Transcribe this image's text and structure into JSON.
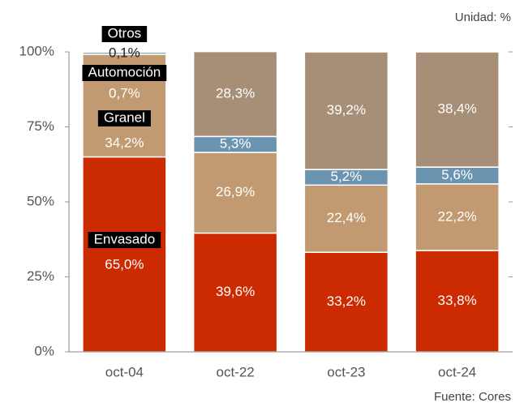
{
  "chart_data": {
    "type": "stacked_bar",
    "unit_label": "Unidad: %",
    "source": "Fuente: Cores",
    "categories": [
      "oct-04",
      "oct-22",
      "oct-23",
      "oct-24"
    ],
    "series": [
      {
        "name": "Envasado",
        "color": "#cc2a00",
        "values": [
          65.0,
          39.6,
          33.2,
          33.8
        ],
        "value_labels": [
          "65,0%",
          "39,6%",
          "33,2%",
          "33,8%"
        ]
      },
      {
        "name": "Granel",
        "color": "#c19a72",
        "values": [
          34.2,
          26.9,
          22.4,
          22.2
        ],
        "value_labels": [
          "34,2%",
          "26,9%",
          "22,4%",
          "22,2%"
        ]
      },
      {
        "name": "Automoción",
        "color": "#6a94b0",
        "values": [
          0.7,
          5.3,
          5.2,
          5.6
        ],
        "value_labels": [
          "0,7%",
          "5,3%",
          "5,2%",
          "5,6%"
        ]
      },
      {
        "name": "Otros",
        "color": "#a68e77",
        "values": [
          0.1,
          28.3,
          39.2,
          38.4
        ],
        "value_labels": [
          "0,1%",
          "28,3%",
          "39,2%",
          "38,4%"
        ]
      }
    ],
    "ylim": [
      0,
      100
    ],
    "yticks": [
      {
        "value": 0,
        "label": "0%"
      },
      {
        "value": 25,
        "label": "25%"
      },
      {
        "value": 50,
        "label": "50%"
      },
      {
        "value": 75,
        "label": "75%"
      },
      {
        "value": 100,
        "label": "100%"
      }
    ]
  }
}
